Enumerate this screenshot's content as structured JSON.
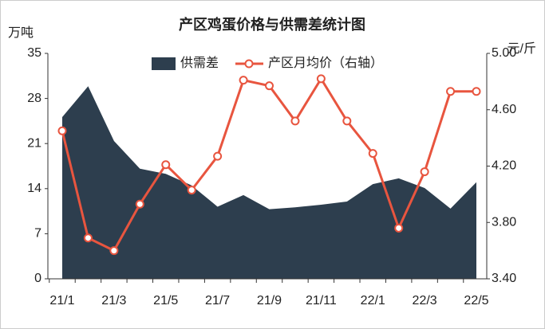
{
  "chart_data": {
    "type": "area-line",
    "title": "产区鸡蛋价格与供需差统计图",
    "y_label": "万吨",
    "y2_label": "元/斤",
    "categories": [
      "21/1",
      null,
      "21/3",
      null,
      "21/5",
      null,
      "21/7",
      null,
      "21/9",
      null,
      "21/11",
      null,
      "22/1",
      null,
      "22/3",
      null,
      "22/5"
    ],
    "series": [
      {
        "name": "供需差",
        "color": "#2d3e4e",
        "type": "area",
        "values": [
          25.1,
          29.9,
          21.4,
          17.1,
          16.3,
          14.5,
          11.2,
          13.0,
          10.8,
          11.1,
          11.5,
          12.0,
          14.7,
          15.6,
          14.1,
          10.9,
          15.0
        ]
      },
      {
        "name": "产区月均价（右轴）",
        "color": "#e8553f",
        "type": "line",
        "axis": "y2",
        "values": [
          4.45,
          3.69,
          3.6,
          3.93,
          4.21,
          4.03,
          4.27,
          4.81,
          4.77,
          4.52,
          4.82,
          4.52,
          4.29,
          3.76,
          4.16,
          4.73,
          4.73
        ]
      }
    ],
    "ylim": [
      0,
      35
    ],
    "yticks": [
      0,
      7,
      14,
      21,
      28,
      35
    ],
    "y2lim": [
      3.4,
      5.0
    ],
    "y2ticks": [
      {
        "value": 3.4,
        "label": "3.40"
      },
      {
        "value": 3.8,
        "label": "3.80"
      },
      {
        "value": 4.2,
        "label": "4.20"
      },
      {
        "value": 4.6,
        "label": "4.60"
      },
      {
        "value": 5.0,
        "label": "5.00"
      }
    ],
    "legend": "top"
  }
}
